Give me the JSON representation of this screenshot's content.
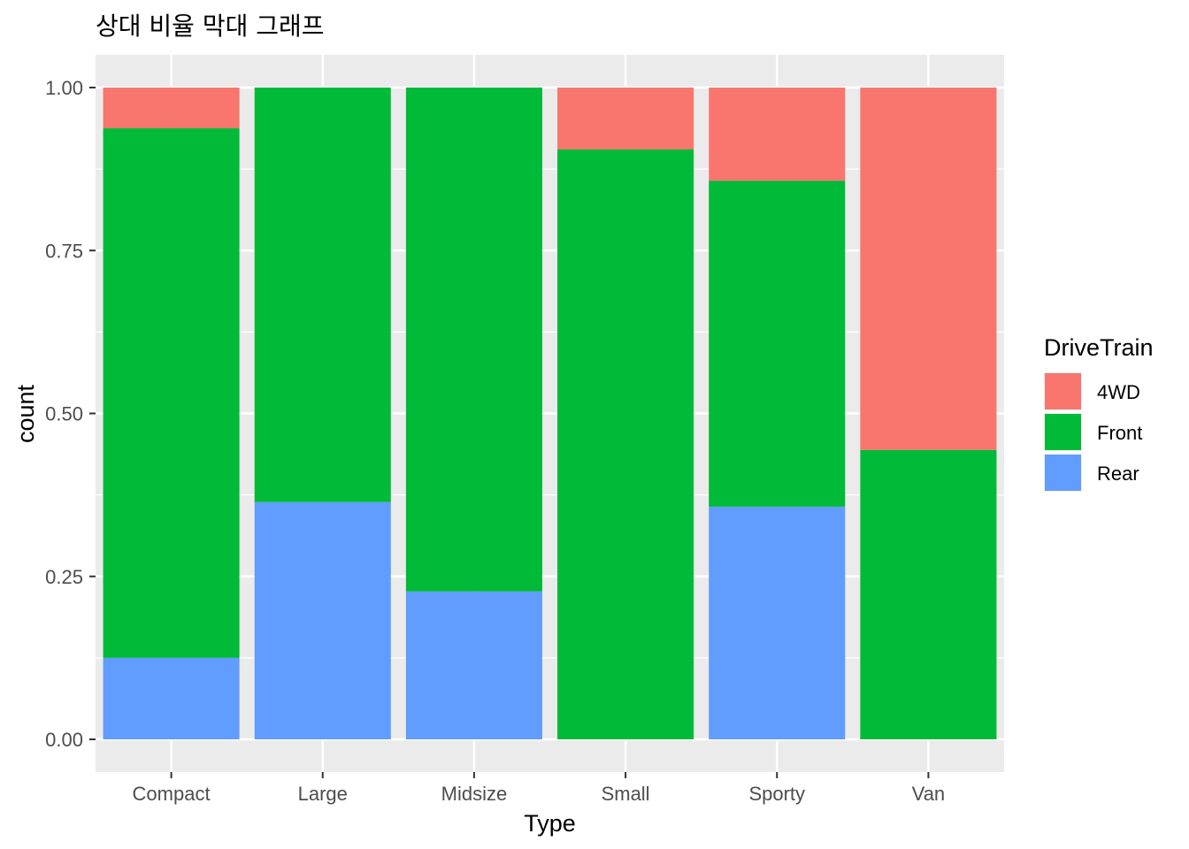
{
  "chart_data": {
    "type": "bar",
    "stacked": "fill",
    "title": "상대 비율 막대 그래프",
    "xlabel": "Type",
    "ylabel": "count",
    "ylim": [
      0,
      1
    ],
    "y_ticks": [
      0,
      0.25,
      0.5,
      0.75,
      1
    ],
    "y_tick_labels": [
      "0.00",
      "0.25",
      "0.50",
      "0.75",
      "1.00"
    ],
    "categories": [
      "Compact",
      "Large",
      "Midsize",
      "Small",
      "Sporty",
      "Van"
    ],
    "series": [
      {
        "name": "Rear",
        "color": "#619CFF",
        "values": [
          0.125,
          0.364,
          0.227,
          0.0,
          0.357,
          0.0
        ]
      },
      {
        "name": "Front",
        "color": "#00BA38",
        "values": [
          0.8125,
          0.636,
          0.773,
          0.905,
          0.5,
          0.444
        ]
      },
      {
        "name": "4WD",
        "color": "#F8766D",
        "values": [
          0.0625,
          0.0,
          0.0,
          0.095,
          0.143,
          0.556
        ]
      }
    ],
    "legend": {
      "title": "DriveTrain",
      "position": "right",
      "entries": [
        "4WD",
        "Front",
        "Rear"
      ]
    },
    "grid": true,
    "panel_background": "#EBEBEB"
  }
}
